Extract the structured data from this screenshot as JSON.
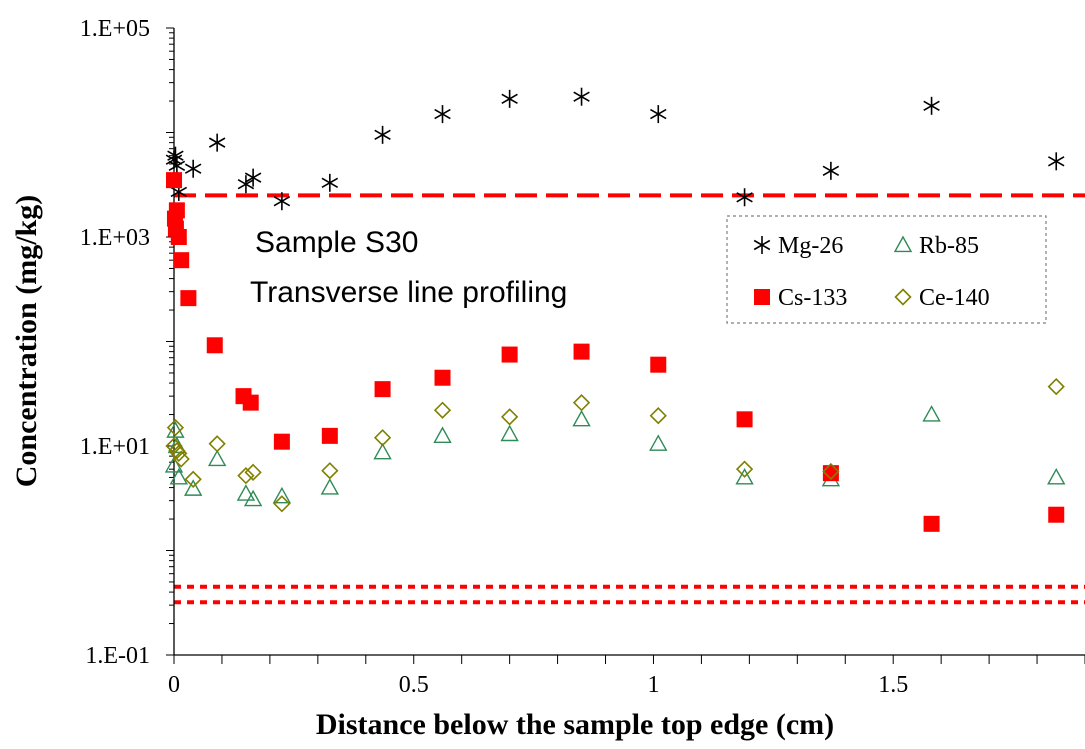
{
  "chart_data": {
    "type": "scatter",
    "title": "",
    "xlabel": "Distance below the sample top edge (cm)",
    "ylabel": "Concentration (mg/kg)",
    "xlim": [
      0,
      1.9
    ],
    "ylim": [
      0.1,
      100000
    ],
    "yscale": "log",
    "x_ticks": [
      "0",
      "0.5",
      "1",
      "1.5"
    ],
    "x_tick_values": [
      0,
      0.5,
      1,
      1.5
    ],
    "y_ticks": [
      "1.E-01",
      "1.E+01",
      "1.E+03",
      "1.E+05"
    ],
    "y_tick_values": [
      0.1,
      10,
      1000,
      100000
    ],
    "annotations": [
      "Sample S30",
      "Transverse line profiling"
    ],
    "legend_position": "top-right",
    "reference_lines": [
      {
        "style": "dashed",
        "color": "#ff0000",
        "y": 2500
      },
      {
        "style": "dotted",
        "color": "#ff0000",
        "y": 0.45
      },
      {
        "style": "dotted",
        "color": "#ff0000",
        "y": 0.32
      }
    ],
    "series": [
      {
        "name": "Mg-26",
        "marker": "asterisk",
        "color": "#000000",
        "x": [
          0,
          0.003,
          0.006,
          0.01,
          0.04,
          0.09,
          0.15,
          0.165,
          0.225,
          0.325,
          0.435,
          0.56,
          0.7,
          0.85,
          1.01,
          1.19,
          1.37,
          1.58,
          1.84
        ],
        "y": [
          5500,
          6000,
          4800,
          2700,
          4500,
          8000,
          3200,
          3700,
          2200,
          3300,
          9500,
          15000,
          21000,
          22000,
          15000,
          2400,
          4300,
          18000,
          5300
        ]
      },
      {
        "name": "Rb-85",
        "marker": "triangle-open",
        "color": "#2e8b57",
        "x": [
          0,
          0.003,
          0.006,
          0.01,
          0.04,
          0.09,
          0.15,
          0.165,
          0.225,
          0.325,
          0.435,
          0.56,
          0.7,
          0.85,
          1.01,
          1.19,
          1.37,
          1.58,
          1.84
        ],
        "y": [
          6.5,
          14,
          10,
          5,
          3.9,
          7.5,
          3.5,
          3.1,
          3.3,
          4,
          8.7,
          12.5,
          13,
          18,
          10.5,
          5,
          4.8,
          20,
          5
        ]
      },
      {
        "name": "Cs-133",
        "marker": "square-filled",
        "color": "#ff0000",
        "x": [
          0,
          0.002,
          0.004,
          0.006,
          0.01,
          0.015,
          0.03,
          0.085,
          0.145,
          0.16,
          0.225,
          0.325,
          0.435,
          0.56,
          0.7,
          0.85,
          1.01,
          1.19,
          1.37,
          1.58,
          1.84
        ],
        "y": [
          3500,
          1500,
          1200,
          1800,
          1000,
          600,
          260,
          92,
          30,
          26,
          11,
          12.5,
          35,
          45,
          75,
          80,
          60,
          18,
          5.5,
          1.8,
          2.2
        ]
      },
      {
        "name": "Ce-140",
        "marker": "diamond-open",
        "color": "#808000",
        "x": [
          0,
          0.003,
          0.006,
          0.01,
          0.015,
          0.04,
          0.09,
          0.15,
          0.165,
          0.225,
          0.325,
          0.435,
          0.56,
          0.7,
          0.85,
          1.01,
          1.19,
          1.37,
          1.58,
          1.84
        ],
        "y": [
          10,
          15,
          9,
          8.5,
          7.5,
          4.8,
          10.5,
          5.2,
          5.6,
          2.8,
          5.8,
          12,
          22,
          19,
          26,
          19.5,
          6,
          5.7,
          null,
          37
        ]
      }
    ]
  }
}
